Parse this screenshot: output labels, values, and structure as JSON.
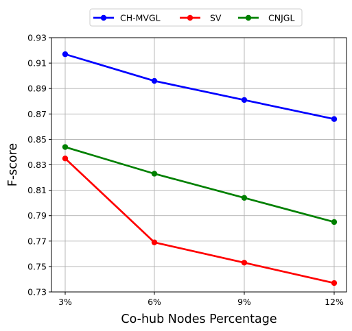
{
  "chart_data": {
    "type": "line",
    "title": "",
    "xlabel": "Co-hub Nodes Percentage",
    "ylabel": "F-score",
    "categories": [
      "3%",
      "6%",
      "9%",
      "12%"
    ],
    "ylim": [
      0.73,
      0.93
    ],
    "yticks": [
      "0.73",
      "0.75",
      "0.77",
      "0.79",
      "0.81",
      "0.83",
      "0.85",
      "0.87",
      "0.89",
      "0.91",
      "0.93"
    ],
    "grid": true,
    "legend_position": "top-center, outside plot, 3 columns",
    "series": [
      {
        "name": "CH-MVGL",
        "color": "#0000ff",
        "marker": "circle",
        "values": [
          0.917,
          0.896,
          0.881,
          0.866
        ]
      },
      {
        "name": "SV",
        "color": "#ff0000",
        "marker": "circle",
        "values": [
          0.835,
          0.769,
          0.753,
          0.737
        ]
      },
      {
        "name": "CNJGL",
        "color": "#008000",
        "marker": "circle",
        "values": [
          0.844,
          0.823,
          0.804,
          0.785
        ]
      }
    ]
  }
}
